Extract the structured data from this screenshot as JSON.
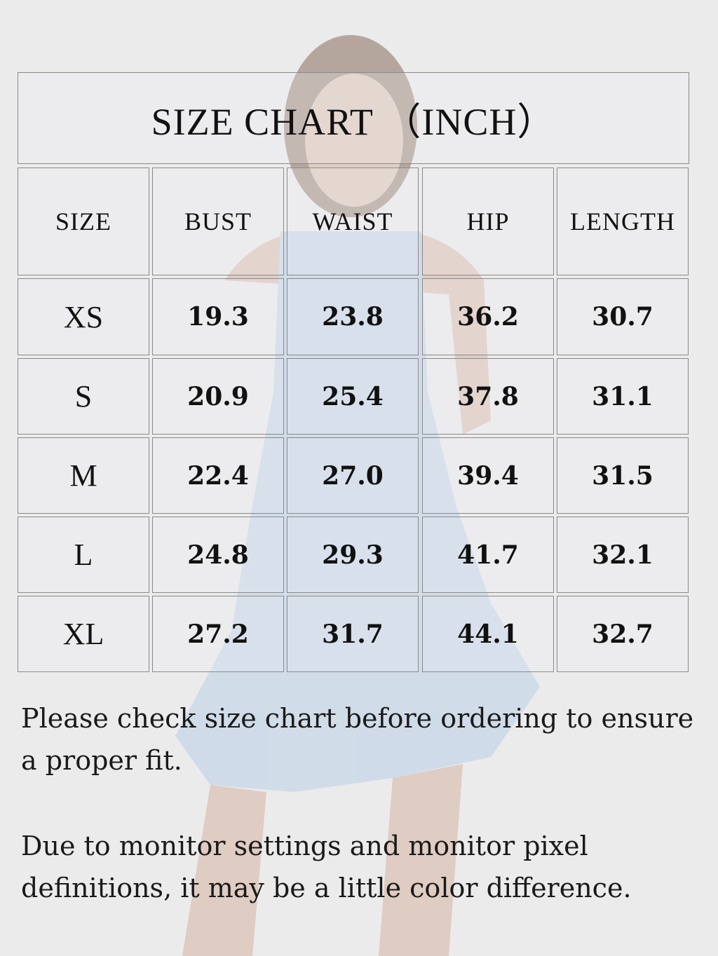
{
  "title": "SIZE CHART （INCH）",
  "headers": [
    "SIZE",
    "BUST",
    "WAIST",
    "HIP",
    "LENGTH"
  ],
  "rows": [
    [
      "XS",
      "19.3",
      "23.8",
      "36.2",
      "30.7"
    ],
    [
      "S",
      "20.9",
      "25.4",
      "37.8",
      "31.1"
    ],
    [
      "M",
      "22.4",
      "27.0",
      "39.4",
      "31.5"
    ],
    [
      "L",
      "24.8",
      "29.3",
      "41.7",
      "32.1"
    ],
    [
      "XL",
      "27.2",
      "31.7",
      "44.1",
      "32.7"
    ]
  ],
  "notes": [
    "Please check size chart before ordering to ensure a proper fit.",
    "Due to monitor settings and monitor pixel definitions, it may be a little color difference."
  ],
  "colors": {
    "background": "#ebebec",
    "dress": "#b9cfe6",
    "border": "#8a8a8a"
  }
}
